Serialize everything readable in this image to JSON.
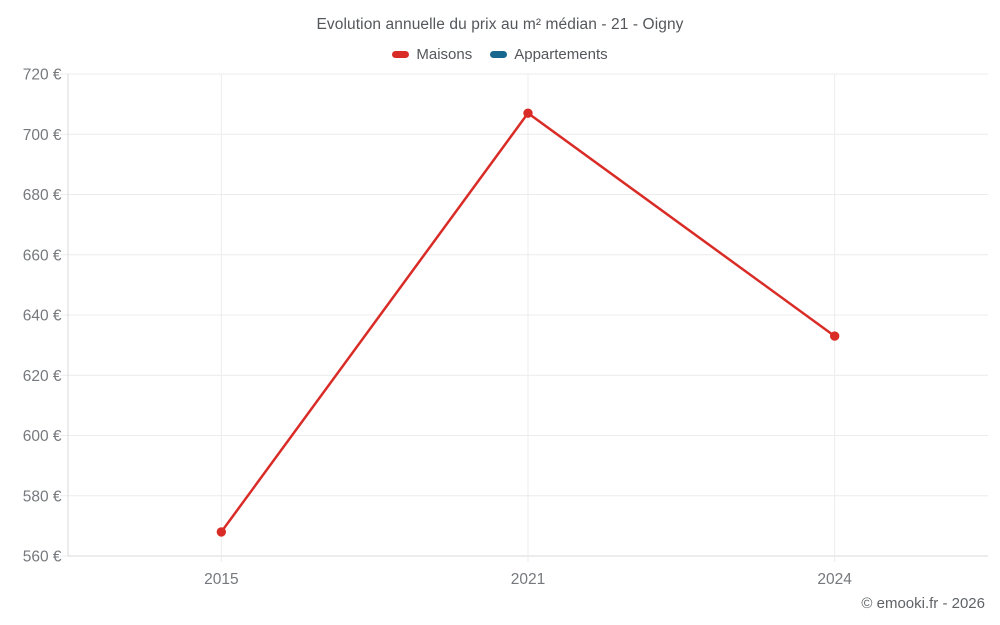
{
  "chart_data": {
    "type": "line",
    "title": "Evolution annuelle du prix au m² médian - 21 - Oigny",
    "categories": [
      "2015",
      "2021",
      "2024"
    ],
    "series": [
      {
        "name": "Maisons",
        "color": "#d92c27",
        "values": [
          568,
          707,
          633
        ]
      },
      {
        "name": "Appartements",
        "color": "#17678f",
        "values": []
      }
    ],
    "ylim": [
      560,
      720
    ],
    "ytick_step": 20,
    "ytick_suffix": " €",
    "ytick_labels": [
      "560 €",
      "580 €",
      "600 €",
      "620 €",
      "640 €",
      "660 €",
      "680 €",
      "700 €",
      "720 €"
    ],
    "grid": true,
    "legend_position": "top"
  },
  "footer": {
    "copyright": "© emooki.fr - 2026"
  },
  "colors": {
    "maisons": "#d92c27",
    "appartements": "#17678f",
    "grid_line": "#ececec",
    "axis_line": "#d9d9d9",
    "tick_text": "#75787c",
    "title_text": "#54575b"
  }
}
